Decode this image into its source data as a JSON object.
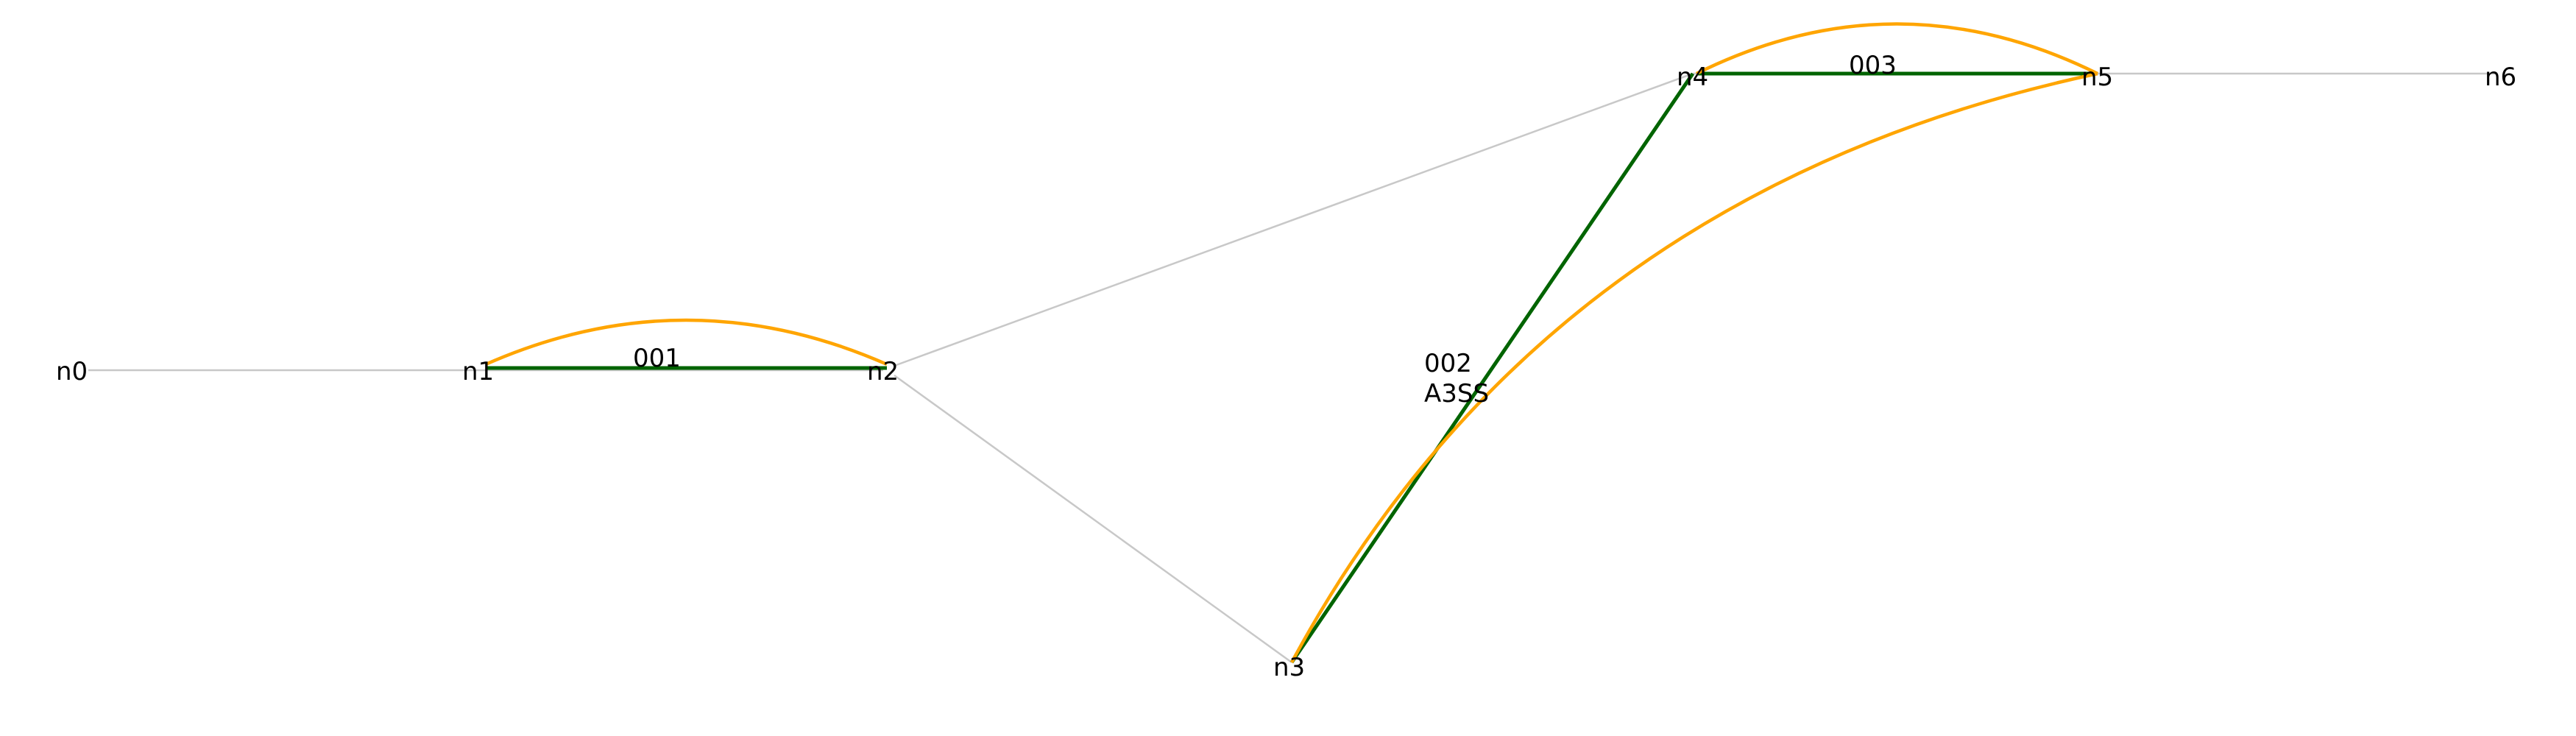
{
  "colors": {
    "backbone": "#c8c8c8",
    "green_edge": "#006400",
    "orange_arc": "#ffa500",
    "background": "#ffffff"
  },
  "nodes": [
    {
      "id": "n0",
      "label": "n0"
    },
    {
      "id": "n1",
      "label": "n1"
    },
    {
      "id": "n2",
      "label": "n2"
    },
    {
      "id": "n3",
      "label": "n3"
    },
    {
      "id": "n4",
      "label": "n4"
    },
    {
      "id": "n5",
      "label": "n5"
    },
    {
      "id": "n6",
      "label": "n6"
    }
  ],
  "backbone_edges": [
    {
      "from": "n0",
      "to": "n1"
    },
    {
      "from": "n1",
      "to": "n2"
    },
    {
      "from": "n2",
      "to": "n4"
    },
    {
      "from": "n2",
      "to": "n3"
    },
    {
      "from": "n3",
      "to": "n4"
    },
    {
      "from": "n4",
      "to": "n5"
    },
    {
      "from": "n5",
      "to": "n6"
    }
  ],
  "events": [
    {
      "id": "001",
      "label_lines": [
        "001"
      ],
      "from": "n1",
      "to": "n2"
    },
    {
      "id": "002",
      "label_lines": [
        "002",
        "A3SS"
      ],
      "from": "n3",
      "to": "n4",
      "alt_to": "n5"
    },
    {
      "id": "003",
      "label_lines": [
        "003"
      ],
      "from": "n4",
      "to": "n5"
    }
  ]
}
